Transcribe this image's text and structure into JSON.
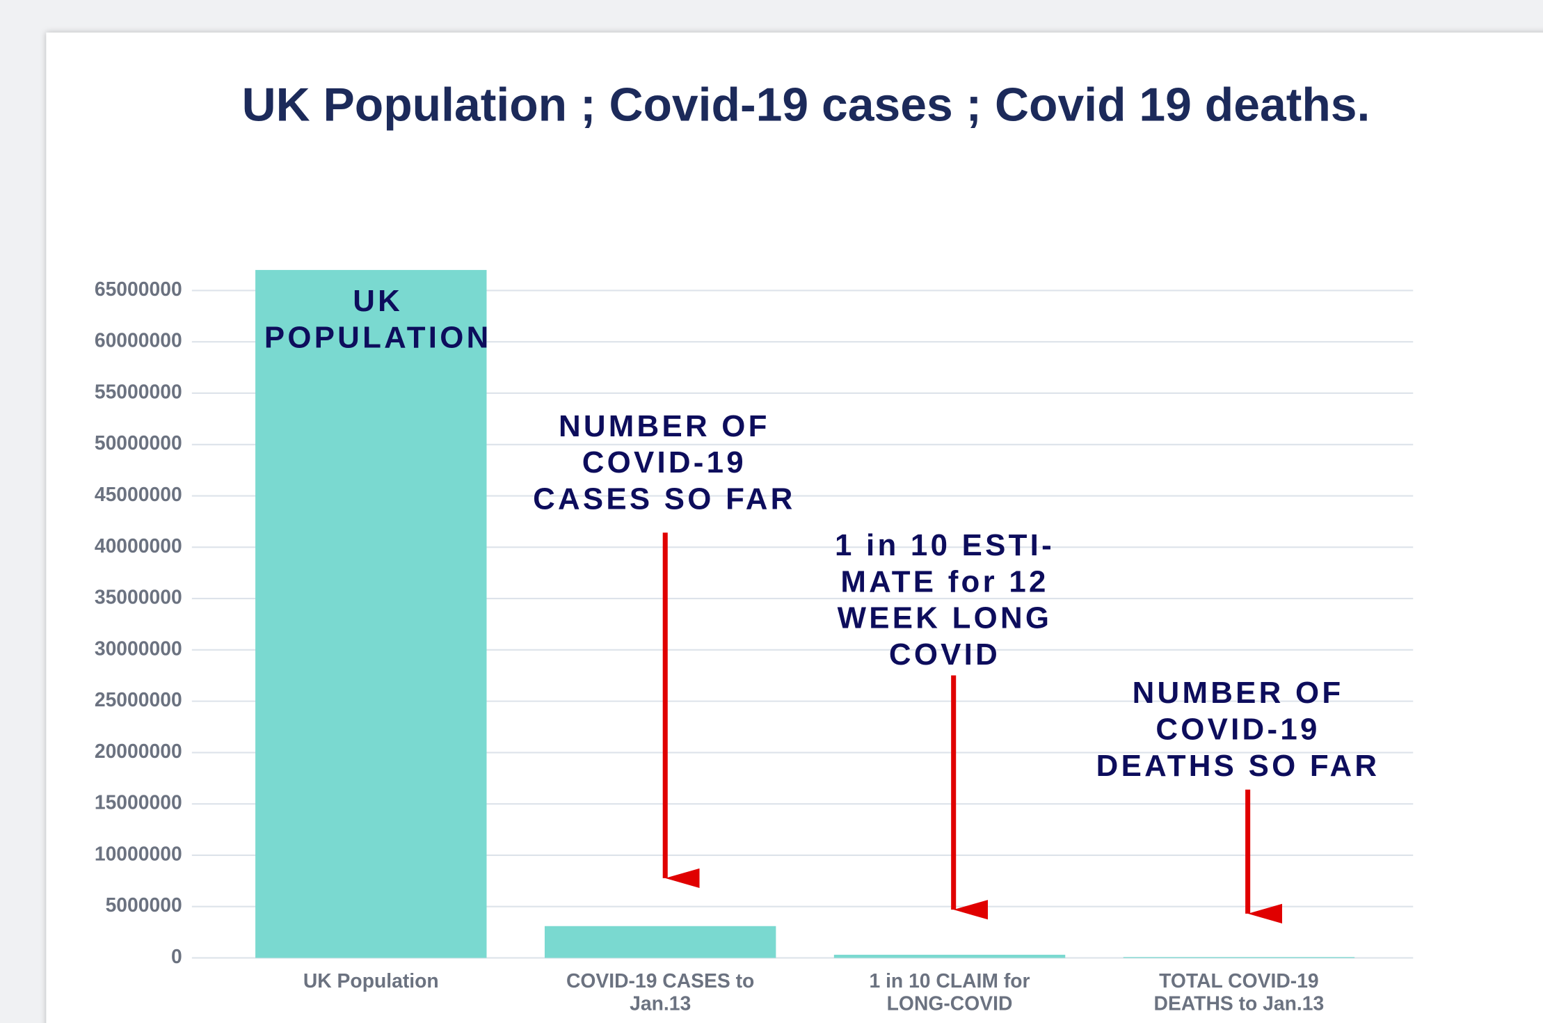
{
  "chart_data": {
    "type": "bar",
    "title": "UK Population ; Covid-19 cases ; Covid 19 deaths.",
    "categories": [
      "UK Population",
      "COVID-19 CASES to Jan.13",
      "1 in 10 CLAIM for LONG-COVID",
      "TOTAL COVID-19 DEATHS to Jan.13"
    ],
    "values": [
      67000000,
      3100000,
      310000,
      84000
    ],
    "color": "#7ad9d0",
    "ylim": [
      0,
      65000000
    ],
    "yticks": [
      0,
      5000000,
      10000000,
      15000000,
      20000000,
      25000000,
      30000000,
      35000000,
      40000000,
      45000000,
      50000000,
      55000000,
      60000000,
      65000000
    ],
    "grid": true,
    "annotations": [
      "UK\nPOPULATION",
      "NUMBER OF\nCOVID-19\nCASES SO FAR",
      "1 in 10 ESTI-\nMATE for 12\nWEEK LONG\nCOVID",
      "NUMBER OF\nCOVID-19\nDEATHS SO FAR"
    ]
  }
}
